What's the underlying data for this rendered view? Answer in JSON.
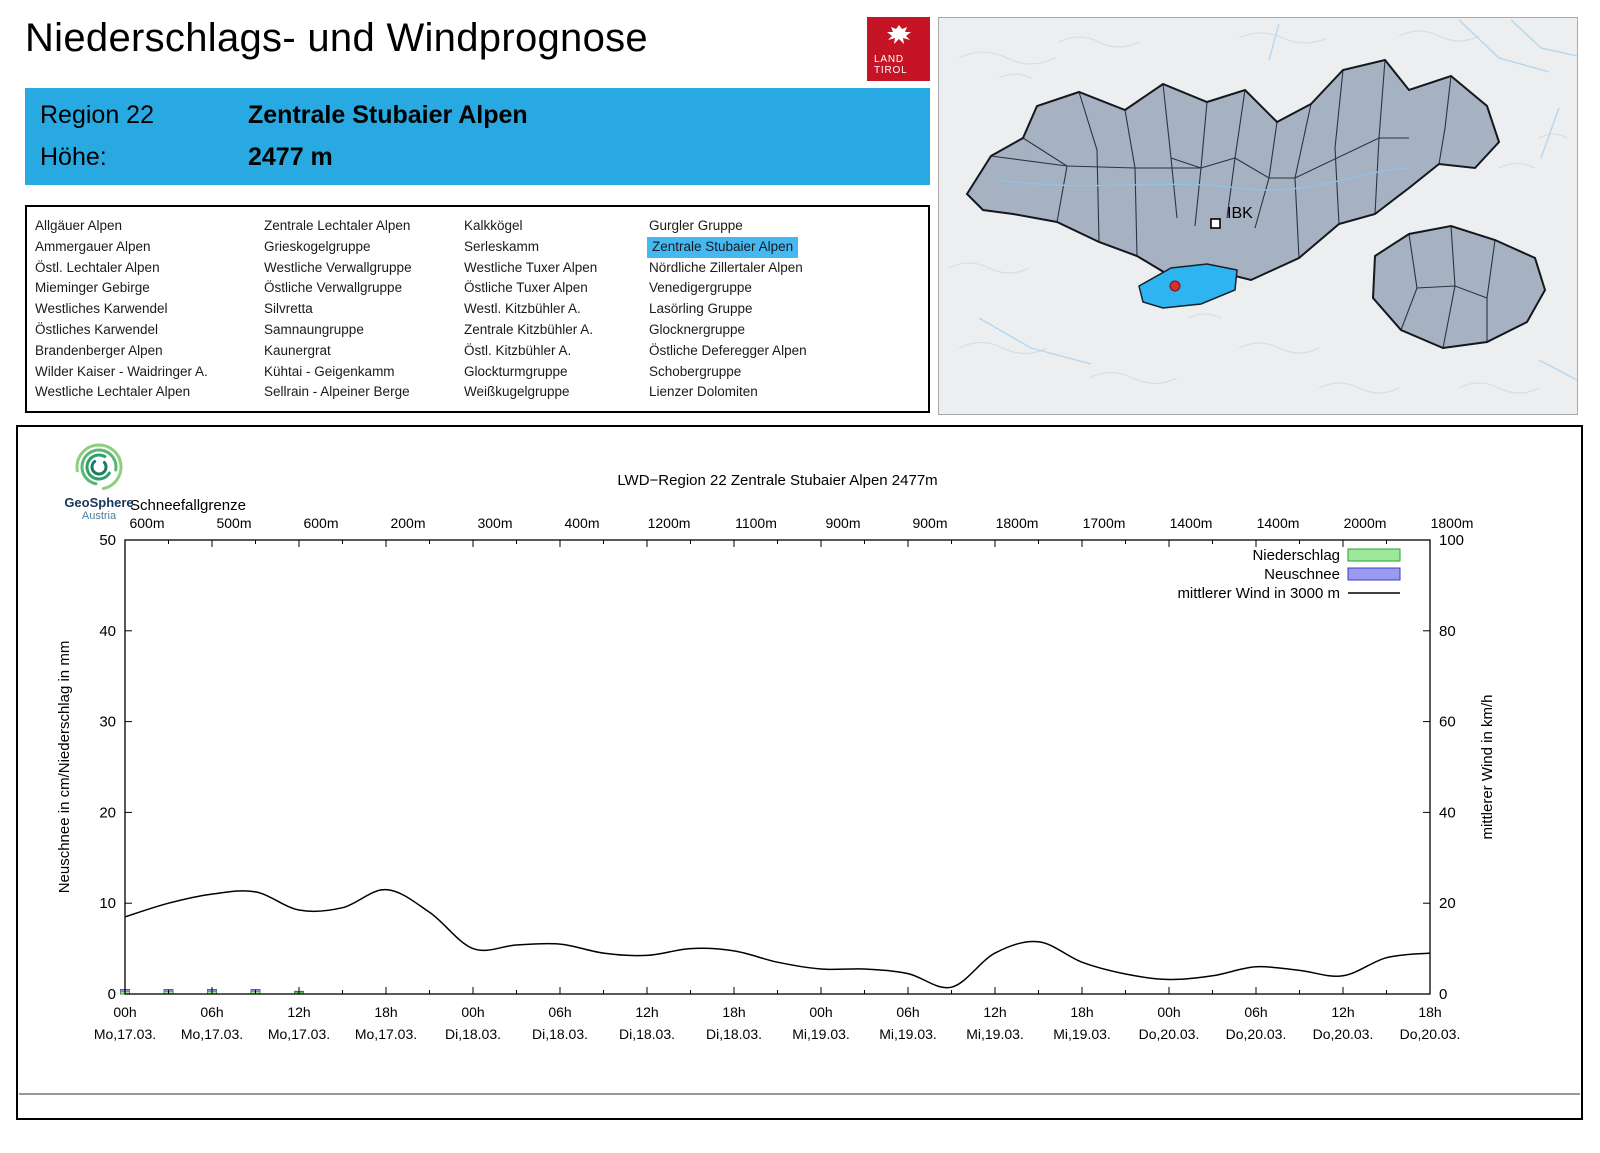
{
  "header": {
    "title": "Niederschlags- und Windprognose"
  },
  "logo": {
    "line1": "LAND",
    "line2": "TIROL"
  },
  "geosphere": {
    "name": "GeoSphere",
    "country": "Austria"
  },
  "map": {
    "city_label": "IBK"
  },
  "region_info": {
    "region_label": "Region 22",
    "region_name": "Zentrale Stubaier Alpen",
    "hoehe_label": "Höhe:",
    "hoehe_value": "2477 m"
  },
  "region_list": {
    "selected": "Zentrale Stubaier Alpen",
    "columns": [
      [
        "Allgäuer Alpen",
        "Ammergauer Alpen",
        "Östl. Lechtaler Alpen",
        "Mieminger Gebirge",
        "Westliches Karwendel",
        "Östliches Karwendel",
        "Brandenberger Alpen",
        "Wilder Kaiser - Waidringer A.",
        "Westliche Lechtaler Alpen"
      ],
      [
        "Zentrale Lechtaler Alpen",
        "Grieskogelgruppe",
        "Westliche Verwallgruppe",
        "Östliche Verwallgruppe",
        "Silvretta",
        "Samnaungruppe",
        "Kaunergrat",
        "Kühtai - Geigenkamm",
        "Sellrain - Alpeiner Berge"
      ],
      [
        "Kalkkögel",
        "Serleskamm",
        "Westliche Tuxer Alpen",
        "Östliche Tuxer Alpen",
        "Westl. Kitzbühler A.",
        "Zentrale Kitzbühler A.",
        "Östl. Kitzbühler A.",
        "Glockturmgruppe",
        "Weißkugelgruppe"
      ],
      [
        "Gurgler Gruppe",
        "Zentrale Stubaier Alpen",
        "Nördliche Zillertaler Alpen",
        "Venedigergruppe",
        "Lasörling Gruppe",
        "Glocknergruppe",
        "Östliche Deferegger Alpen",
        "Schobergruppe",
        "Lienzer Dolomiten"
      ]
    ]
  },
  "colors": {
    "accent_blue": "#29a9e1",
    "highlight_blue": "#45b8f2",
    "land_tirol_red": "#c41425",
    "map_highlight": "#2eb4f0",
    "marker_red": "#d62f2f"
  },
  "chart_data": {
    "type": "line",
    "title": "LWD−Region 22 Zentrale Stubaier Alpen 2477m",
    "snowline": {
      "label": "Schneefallgrenze",
      "values": [
        "600m",
        "500m",
        "600m",
        "200m",
        "300m",
        "400m",
        "1200m",
        "1100m",
        "900m",
        "900m",
        "1800m",
        "1700m",
        "1400m",
        "1400m",
        "2000m",
        "1800m"
      ]
    },
    "ylabel_left": "Neuschnee in cm/Niederschlag in mm",
    "ylabel_right": "mittlerer Wind in km/h",
    "ylim_left": [
      0,
      50
    ],
    "ylim_right": [
      0,
      100
    ],
    "yticks_left": [
      0,
      10,
      20,
      30,
      40,
      50
    ],
    "yticks_right": [
      0,
      20,
      40,
      60,
      80,
      100
    ],
    "legend": [
      {
        "label": "Niederschlag",
        "type": "box",
        "fill": "#9de89a",
        "stroke": "#27a327"
      },
      {
        "label": "Neuschnee",
        "type": "box",
        "fill": "#9a9aee",
        "stroke": "#3c3cc8"
      },
      {
        "label": "mittlerer Wind in 3000 m",
        "type": "line",
        "stroke": "#000000"
      }
    ],
    "x_ticks": [
      {
        "hour": "00h",
        "date": "Mo,17.03."
      },
      {
        "hour": "06h",
        "date": "Mo,17.03."
      },
      {
        "hour": "12h",
        "date": "Mo,17.03."
      },
      {
        "hour": "18h",
        "date": "Mo,17.03."
      },
      {
        "hour": "00h",
        "date": "Di,18.03."
      },
      {
        "hour": "06h",
        "date": "Di,18.03."
      },
      {
        "hour": "12h",
        "date": "Di,18.03."
      },
      {
        "hour": "18h",
        "date": "Di,18.03."
      },
      {
        "hour": "00h",
        "date": "Mi,19.03."
      },
      {
        "hour": "06h",
        "date": "Mi,19.03."
      },
      {
        "hour": "12h",
        "date": "Mi,19.03."
      },
      {
        "hour": "18h",
        "date": "Mi,19.03."
      },
      {
        "hour": "00h",
        "date": "Do,20.03."
      },
      {
        "hour": "06h",
        "date": "Do,20.03."
      },
      {
        "hour": "12h",
        "date": "Do,20.03."
      },
      {
        "hour": "18h",
        "date": "Do,20.03."
      }
    ],
    "x_hours": [
      0,
      3,
      6,
      9,
      12,
      15,
      18,
      21,
      24,
      27,
      30,
      33,
      36,
      39,
      42,
      45,
      48,
      51,
      54,
      57,
      60,
      63,
      66,
      69,
      72,
      75,
      78,
      81,
      84,
      87,
      90
    ],
    "series": [
      {
        "name": "Niederschlag",
        "unit": "mm",
        "axis": "left",
        "values": [
          0.3,
          0.3,
          0.3,
          0.3,
          0.2,
          0,
          0,
          0,
          0,
          0,
          0,
          0,
          0,
          0,
          0,
          0,
          0,
          0,
          0,
          0,
          0,
          0,
          0,
          0,
          0,
          0,
          0,
          0,
          0,
          0,
          0
        ]
      },
      {
        "name": "Neuschnee",
        "unit": "cm",
        "axis": "left",
        "values": [
          0.5,
          0.5,
          0.5,
          0.5,
          0.3,
          0,
          0,
          0,
          0,
          0,
          0,
          0,
          0,
          0,
          0,
          0,
          0,
          0,
          0,
          0,
          0,
          0,
          0,
          0,
          0,
          0,
          0,
          0,
          0,
          0,
          0
        ]
      },
      {
        "name": "mittlerer Wind in 3000 m",
        "unit": "km/h",
        "axis": "right",
        "values": [
          17,
          20,
          22,
          22.5,
          18.5,
          19,
          23,
          18,
          10,
          10.8,
          11,
          9,
          8.5,
          10,
          9.5,
          7,
          5.5,
          5.5,
          4.5,
          1.5,
          9,
          11.5,
          7,
          4.4,
          3.2,
          4,
          6,
          5.2,
          4,
          8,
          9
        ]
      }
    ]
  }
}
